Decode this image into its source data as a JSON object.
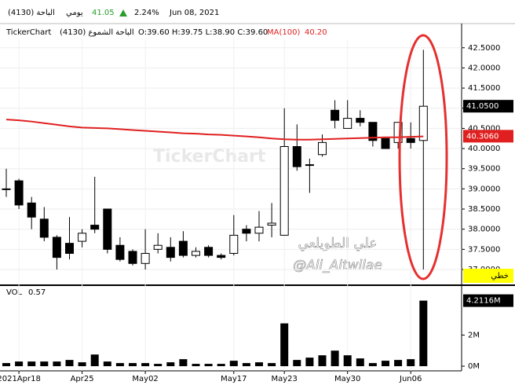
{
  "header": {
    "symbol": "(4130) الباحة",
    "period": "يومي",
    "price": "41.05",
    "change": "2.24%",
    "date": "Jun 08, 2021"
  },
  "chart_data": {
    "type": "candlestick",
    "brand": "TickerChart",
    "instrument": "(4130) الباحة الشموع",
    "ohlc_legend": "O:39.60 H:39.75 L:38.90 C:39.60",
    "categories": [
      null,
      "2021Apr18",
      null,
      null,
      null,
      null,
      "Apr25",
      null,
      null,
      null,
      null,
      "May02",
      null,
      null,
      null,
      null,
      null,
      null,
      "May17",
      null,
      null,
      null,
      "May23",
      null,
      null,
      null,
      null,
      "May30",
      null,
      null,
      null,
      null,
      "Jun06",
      null
    ],
    "open": [
      39.0,
      39.2,
      38.65,
      38.25,
      37.8,
      37.65,
      37.7,
      38.1,
      38.5,
      37.6,
      37.45,
      37.15,
      37.5,
      37.55,
      37.7,
      37.35,
      37.55,
      37.35,
      37.4,
      38.0,
      37.9,
      38.1,
      37.85,
      40.05,
      39.6,
      39.85,
      40.95,
      40.5,
      40.75,
      40.65,
      40.25,
      40.15,
      40.25,
      40.2
    ],
    "high": [
      39.5,
      39.25,
      38.8,
      38.55,
      37.85,
      38.3,
      38.0,
      39.3,
      38.5,
      37.8,
      37.5,
      38.0,
      37.9,
      37.8,
      37.95,
      37.55,
      37.6,
      37.4,
      38.35,
      38.1,
      38.45,
      38.65,
      41.0,
      40.6,
      39.75,
      40.35,
      41.2,
      41.2,
      40.95,
      40.65,
      40.25,
      40.65,
      40.65,
      42.45
    ],
    "low": [
      38.8,
      38.5,
      38.0,
      37.7,
      37.0,
      37.25,
      37.55,
      37.9,
      37.4,
      37.2,
      37.1,
      37.0,
      37.4,
      37.2,
      37.3,
      37.3,
      37.3,
      37.25,
      37.35,
      37.7,
      37.7,
      37.8,
      37.85,
      39.45,
      38.9,
      39.8,
      40.5,
      40.5,
      40.55,
      40.05,
      40.0,
      40.0,
      40.0,
      37.0
    ],
    "close": [
      39.0,
      38.6,
      38.3,
      37.8,
      37.3,
      37.4,
      37.9,
      38.0,
      37.5,
      37.25,
      37.15,
      37.4,
      37.6,
      37.3,
      37.35,
      37.45,
      37.35,
      37.3,
      37.85,
      37.9,
      38.05,
      38.15,
      40.05,
      39.55,
      39.6,
      40.15,
      40.7,
      40.75,
      40.65,
      40.2,
      40.0,
      40.65,
      40.15,
      41.05
    ],
    "up_color": "#ffffff",
    "down_color": "#000000",
    "ylim": [
      36.63,
      42.71
    ],
    "yticks": [
      {
        "value": 42.5,
        "label": "42.5000"
      },
      {
        "value": 42.0,
        "label": "42.0000"
      },
      {
        "value": 41.5,
        "label": "41.5000"
      },
      {
        "value": 41.0,
        "label": "41.0000"
      },
      {
        "value": 40.5,
        "label": "40.5000"
      },
      {
        "value": 40.0,
        "label": "40.0000"
      },
      {
        "value": 39.5,
        "label": "39.5000"
      },
      {
        "value": 39.0,
        "label": "39.0000"
      },
      {
        "value": 38.5,
        "label": "38.5000"
      },
      {
        "value": 38.0,
        "label": "38.0000"
      },
      {
        "value": 37.5,
        "label": "37.5000"
      },
      {
        "value": 37.0,
        "label": "37.0000"
      }
    ],
    "grid": true,
    "last_price": {
      "value": 41.05,
      "label": "41.0500"
    },
    "ma": {
      "name": "MA(100)",
      "legend_value": "40.20",
      "color": "#e02020",
      "values": [
        40.72,
        40.7,
        40.67,
        40.63,
        40.59,
        40.55,
        40.52,
        40.51,
        40.5,
        40.48,
        40.46,
        40.44,
        40.42,
        40.4,
        40.38,
        40.37,
        40.35,
        40.34,
        40.32,
        40.3,
        40.28,
        40.25,
        40.23,
        40.22,
        40.22,
        40.23,
        40.24,
        40.25,
        40.26,
        40.27,
        40.28,
        40.28,
        40.29,
        40.3
      ],
      "last": {
        "value": 40.306,
        "label": "40.3060"
      }
    },
    "volume": {
      "name": "VOL",
      "legend_value": "0.57",
      "color": "#000000",
      "values": [
        0.2,
        0.3,
        0.3,
        0.3,
        0.3,
        0.4,
        0.25,
        0.75,
        0.3,
        0.2,
        0.2,
        0.2,
        0.15,
        0.25,
        0.45,
        0.15,
        0.15,
        0.15,
        0.35,
        0.2,
        0.25,
        0.2,
        2.75,
        0.4,
        0.55,
        0.7,
        1.0,
        0.7,
        0.5,
        0.2,
        0.35,
        0.4,
        0.45,
        4.2116
      ],
      "value_labels": [
        null,
        null,
        null,
        null,
        null,
        null,
        null,
        null,
        null,
        null,
        null,
        null,
        null,
        null,
        null,
        null,
        null,
        null,
        null,
        null,
        null,
        null,
        null,
        null,
        null,
        null,
        null,
        null,
        null,
        null,
        null,
        null,
        null,
        "4.2116M"
      ],
      "ylim": [
        -0.3,
        5.05
      ],
      "yticks": [
        {
          "value": 2,
          "label": "2M"
        },
        {
          "value": 0,
          "label": "0M"
        }
      ]
    },
    "scale_mode": "خطي",
    "watermark": "TickerChart",
    "annotations": [
      "علي الطويلعي",
      "@Ali_Altwilae"
    ]
  }
}
